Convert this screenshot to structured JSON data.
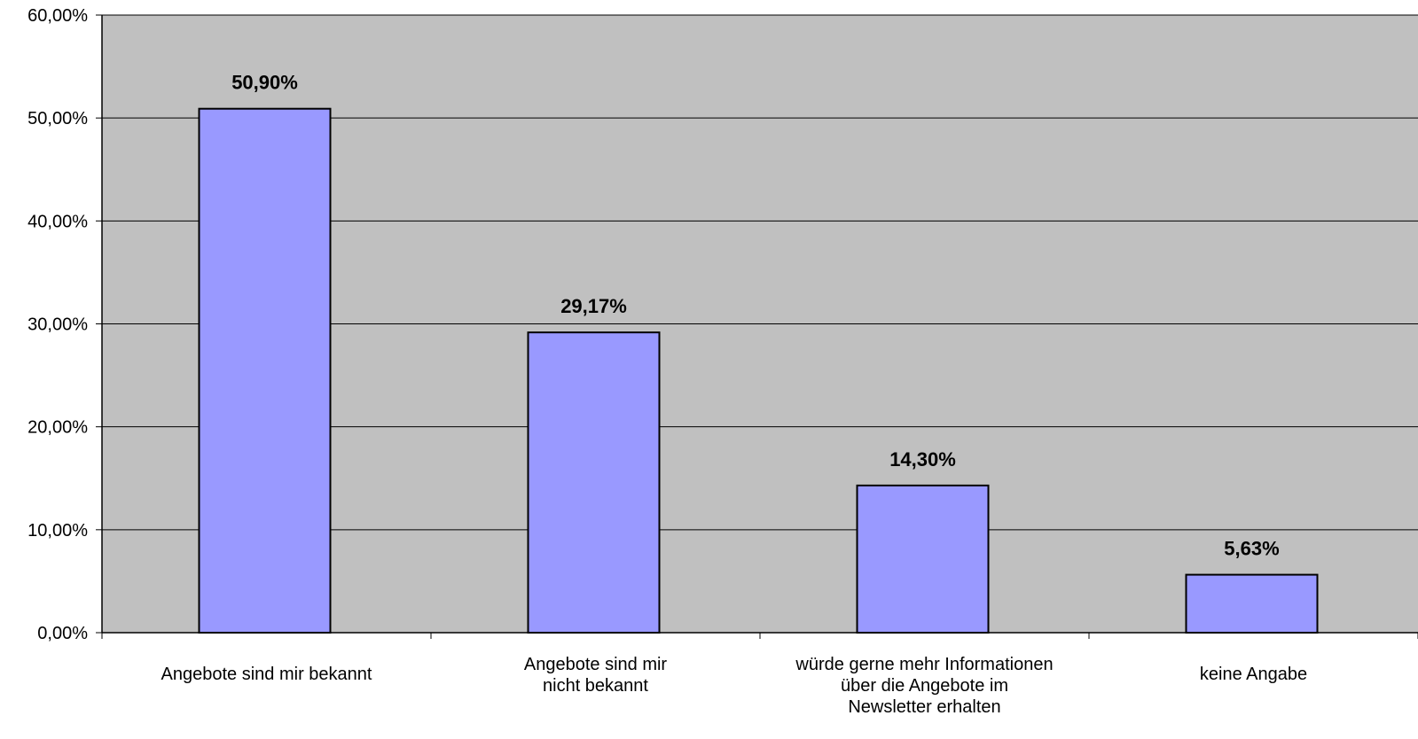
{
  "chart_data": {
    "type": "bar",
    "categories": [
      [
        "Angebote sind mir bekannt"
      ],
      [
        "Angebote sind mir",
        "nicht bekannt"
      ],
      [
        "würde gerne mehr Informationen",
        "über die Angebote im",
        "Newsletter erhalten"
      ],
      [
        "keine Angabe"
      ]
    ],
    "values": [
      50.9,
      29.17,
      14.3,
      5.63
    ],
    "data_labels": [
      "50,90%",
      "29,17%",
      "14,30%",
      "5,63%"
    ],
    "ylim": [
      0,
      60
    ],
    "y_ticks": [
      {
        "value": 0,
        "label": "0,00%"
      },
      {
        "value": 10,
        "label": "10,00%"
      },
      {
        "value": 20,
        "label": "20,00%"
      },
      {
        "value": 30,
        "label": "30,00%"
      },
      {
        "value": 40,
        "label": "40,00%"
      },
      {
        "value": 50,
        "label": "50,00%"
      },
      {
        "value": 60,
        "label": "60,00%"
      }
    ],
    "grid": true,
    "title": "",
    "xlabel": "",
    "ylabel": "",
    "colors": {
      "bar_fill": "#9999FF",
      "bar_stroke": "#000000",
      "plot_background": "#C0C0C0",
      "grid": "#000000"
    }
  }
}
